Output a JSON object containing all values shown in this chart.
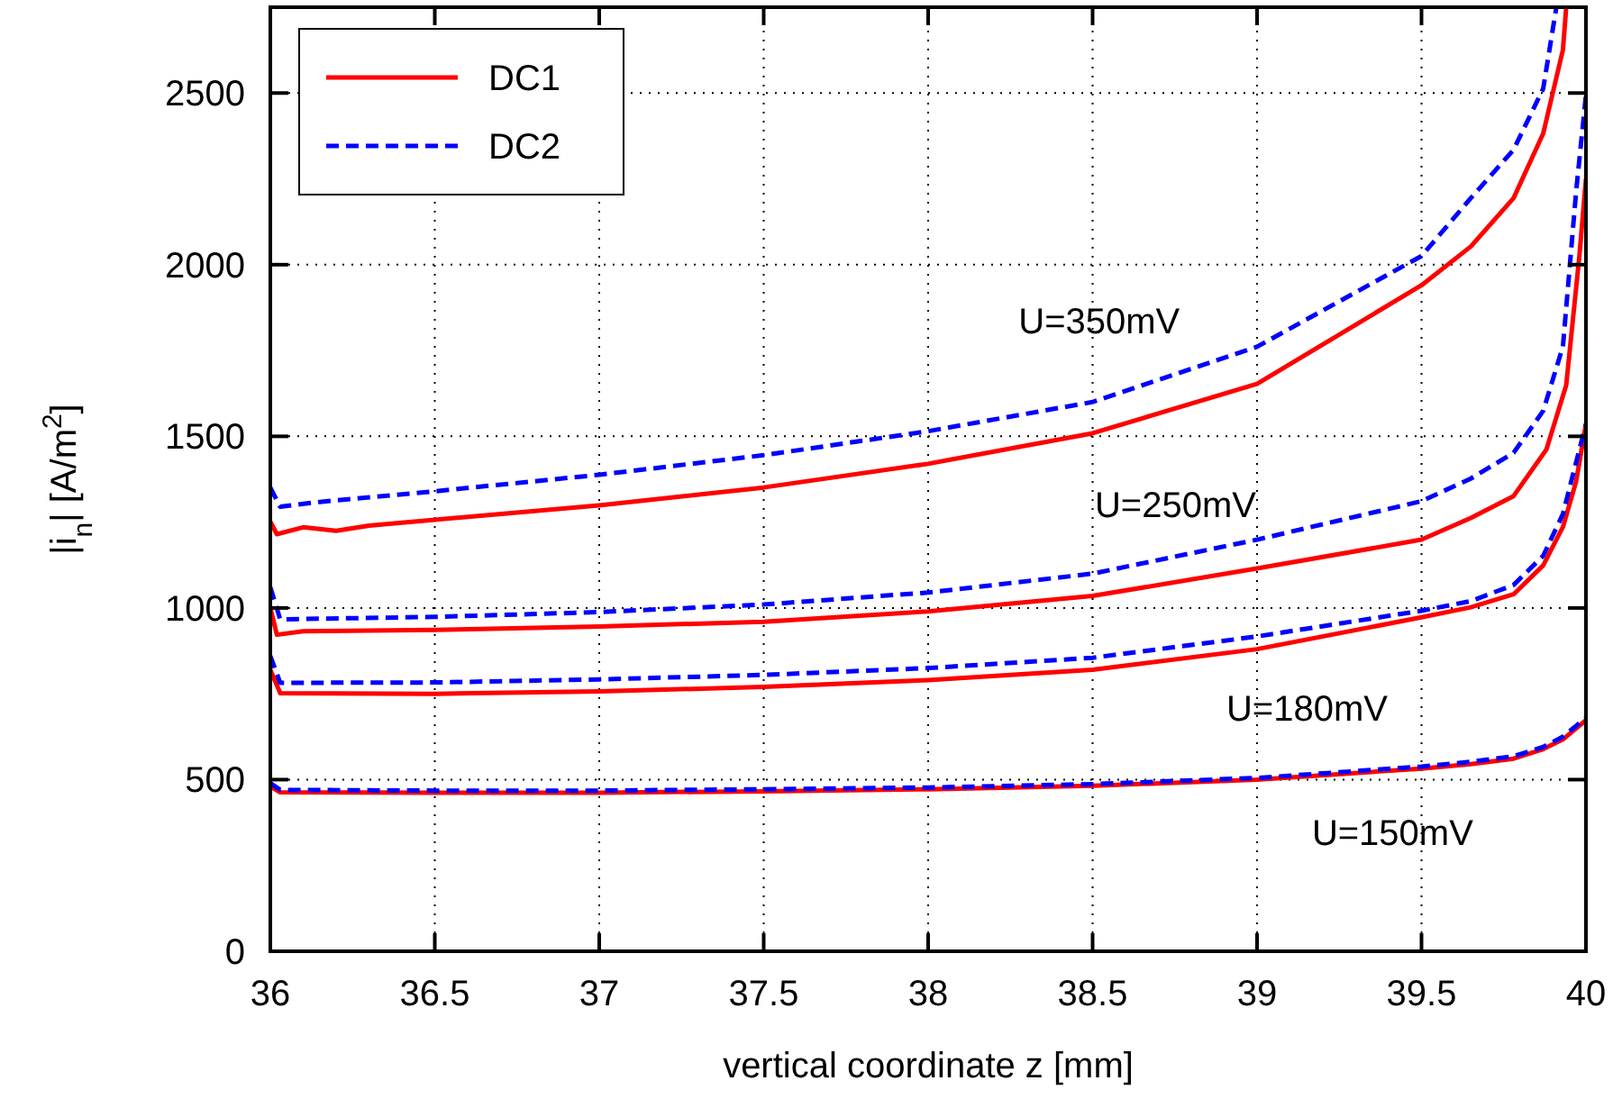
{
  "chart_data": {
    "type": "line",
    "xlabel": "vertical coordinate z [mm]",
    "ylabel": "|i$_{n}$| [A/m$^{2}$]",
    "xlim": [
      36,
      40
    ],
    "xticks": [
      36,
      36.5,
      37,
      37.5,
      38,
      38.5,
      39,
      39.5,
      40
    ],
    "ylim": [
      0,
      2750
    ],
    "yticks": [
      0,
      500,
      1000,
      1500,
      2000,
      2500
    ],
    "grid": true,
    "legend": "top left",
    "series": [
      {
        "name": "DC1",
        "color": "#ff0000",
        "line_style": "solid",
        "x": [
          36,
          36.02,
          36.1,
          36.2,
          36.3,
          36.5,
          37,
          37.5,
          38,
          38.5,
          39,
          39.5,
          39.65,
          39.78,
          39.87,
          39.93,
          39.94
        ],
        "values": [
          1251,
          1215,
          1235,
          1225,
          1240,
          1257,
          1299,
          1351,
          1420,
          1509,
          1653,
          1940,
          2053,
          2194,
          2382,
          2626,
          2750
        ]
      },
      {
        "name": "DC2",
        "color": "#0000ff",
        "line_style": "dashed",
        "x": [
          36,
          36.03,
          36.15,
          36.5,
          37,
          37.5,
          38,
          38.5,
          39,
          39.5,
          39.65,
          39.78,
          39.87,
          39.91
        ],
        "values": [
          1350,
          1295,
          1309,
          1340,
          1388,
          1445,
          1515,
          1600,
          1761,
          2025,
          2194,
          2335,
          2513,
          2750
        ]
      },
      {
        "color": "#ff0000",
        "line_style": "solid",
        "x": [
          36,
          36.02,
          36.1,
          36.5,
          37,
          37.5,
          38,
          38.5,
          39,
          39.5,
          39.65,
          39.78,
          39.88,
          39.94,
          39.98,
          40
        ],
        "values": [
          1000,
          922,
          932,
          936,
          946,
          960,
          990,
          1035,
          1115,
          1199,
          1262,
          1326,
          1462,
          1649,
          2025,
          2250
        ]
      },
      {
        "color": "#0000ff",
        "line_style": "dashed",
        "x": [
          36,
          36.03,
          36.5,
          37,
          37.5,
          38,
          38.5,
          39,
          39.5,
          39.65,
          39.78,
          39.87,
          39.93,
          39.97,
          40
        ],
        "values": [
          1060,
          967,
          974,
          988,
          1010,
          1045,
          1100,
          1199,
          1311,
          1377,
          1452,
          1574,
          1762,
          2212,
          2494
        ]
      },
      {
        "color": "#ff0000",
        "line_style": "solid",
        "x": [
          36,
          36.03,
          36.5,
          37,
          37.5,
          38,
          38.5,
          39,
          39.5,
          39.65,
          39.78,
          39.87,
          39.93,
          39.97,
          40
        ],
        "values": [
          820,
          752,
          750,
          757,
          770,
          790,
          820,
          880,
          973,
          1002,
          1040,
          1124,
          1236,
          1368,
          1536
        ]
      },
      {
        "color": "#0000ff",
        "line_style": "dashed",
        "x": [
          36,
          36.03,
          36.5,
          37,
          37.5,
          38,
          38.5,
          39,
          39.5,
          39.65,
          39.78,
          39.87,
          39.93,
          39.97,
          40
        ],
        "values": [
          860,
          782,
          783,
          792,
          805,
          825,
          855,
          917,
          992,
          1020,
          1067,
          1152,
          1274,
          1424,
          1536
        ]
      },
      {
        "color": "#ff0000",
        "line_style": "solid",
        "x": [
          36,
          36.03,
          36.5,
          37,
          37.5,
          38,
          38.5,
          39,
          39.5,
          39.65,
          39.78,
          39.87,
          39.93,
          40
        ],
        "values": [
          480,
          463,
          462,
          462,
          466,
          472,
          482,
          500,
          532,
          545,
          561,
          589,
          617,
          673
        ]
      },
      {
        "color": "#0000ff",
        "line_style": "dashed",
        "x": [
          36,
          36.03,
          36.5,
          37,
          37.5,
          38,
          38.5,
          39,
          39.5,
          39.65,
          39.78,
          39.87,
          39.93,
          40
        ],
        "values": [
          490,
          470,
          468,
          468,
          472,
          477,
          487,
          505,
          538,
          552,
          568,
          595,
          625,
          680
        ]
      }
    ],
    "annotations": [
      "U=350mV",
      "U=250mV",
      "U=180mV",
      "U=150mV"
    ]
  }
}
